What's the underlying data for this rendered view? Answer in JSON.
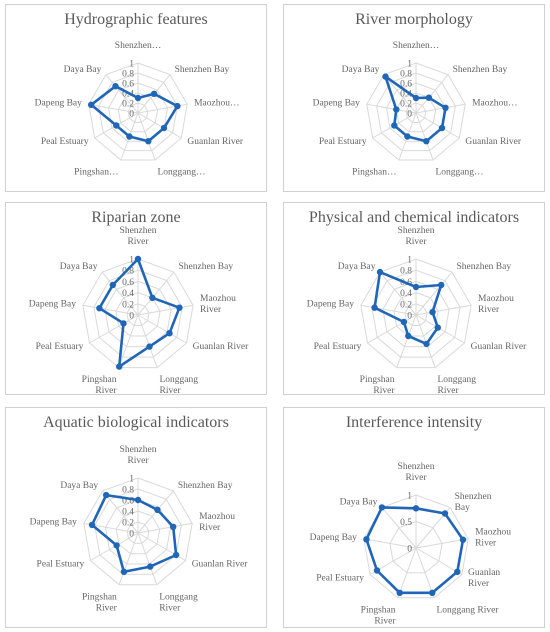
{
  "colors": {
    "series": "#1f66b8",
    "grid": "#d9d9d9",
    "text": "#666666"
  },
  "chart_data": [
    {
      "type": "radar",
      "title": "Hydrographic features",
      "categories": [
        [
          "Shenzhen…"
        ],
        [
          "Shenzhen Bay"
        ],
        [
          "Maozhou…"
        ],
        [
          "Guanlan River"
        ],
        [
          "Longgang…"
        ],
        [
          "Pingshan…"
        ],
        [
          "Peal Estuary"
        ],
        [
          "Dapeng Bay"
        ],
        [
          "Daya Bay"
        ]
      ],
      "ticks": [
        "0",
        "0.2",
        "0.4",
        "0.6",
        "0.8",
        "1"
      ],
      "rmax": 1,
      "values": [
        0.3,
        0.5,
        0.8,
        0.6,
        0.6,
        0.5,
        0.5,
        0.95,
        0.7
      ]
    },
    {
      "type": "radar",
      "title": "River morphology",
      "categories": [
        [
          "Shenzhen…"
        ],
        [
          "Shenzhen Bay"
        ],
        [
          "Maozhou…"
        ],
        [
          "Guanlan River"
        ],
        [
          "Longgang…"
        ],
        [
          "Pingshan…"
        ],
        [
          "Peal Estuary"
        ],
        [
          "Dapeng Bay"
        ],
        [
          "Daya Bay"
        ]
      ],
      "ticks": [
        "0",
        "0.2",
        "0.4",
        "0.6",
        "0.8",
        "1"
      ],
      "rmax": 1,
      "values": [
        0.3,
        0.4,
        0.6,
        0.6,
        0.6,
        0.5,
        0.5,
        0.4,
        0.95
      ]
    },
    {
      "type": "radar",
      "title": "Riparian zone",
      "categories": [
        [
          "Shenzhen",
          "River"
        ],
        [
          "Shenzhen Bay"
        ],
        [
          "Maozhou",
          "River"
        ],
        [
          "Guanlan River"
        ],
        [
          "Longgang",
          "River"
        ],
        [
          "Pingshan",
          "River"
        ],
        [
          "Peal Estuary"
        ],
        [
          "Dapeng Bay"
        ],
        [
          "Daya Bay"
        ]
      ],
      "ticks": [
        "0",
        "0.2",
        "0.4",
        "0.6",
        "0.8",
        "1"
      ],
      "rmax": 1,
      "values": [
        1.0,
        0.4,
        0.75,
        0.65,
        0.6,
        0.98,
        0.3,
        0.7,
        0.7
      ]
    },
    {
      "type": "radar",
      "title": "Physical and chemical indicators",
      "categories": [
        [
          "Shenzhen",
          "River"
        ],
        [
          "Shenzhen Bay"
        ],
        [
          "Maozhou",
          "River"
        ],
        [
          "Guanlan River"
        ],
        [
          "Longgang",
          "River"
        ],
        [
          "Pingshan",
          "River"
        ],
        [
          "Peal Estuary"
        ],
        [
          "Dapeng Bay"
        ],
        [
          "Daya Bay"
        ]
      ],
      "ticks": [
        "0",
        "0.2",
        "0.4",
        "0.6",
        "0.8",
        "1"
      ],
      "rmax": 1,
      "values": [
        0.5,
        0.7,
        0.3,
        0.45,
        0.55,
        0.4,
        0.25,
        0.75,
        1.0
      ]
    },
    {
      "type": "radar",
      "title": "Aquatic biological indicators",
      "categories": [
        [
          "Shenzhen",
          "River"
        ],
        [
          "Shenzhen Bay"
        ],
        [
          "Maozhou",
          "River"
        ],
        [
          "Guanlan River"
        ],
        [
          "Longgang",
          "River"
        ],
        [
          "Pingshan",
          "River"
        ],
        [
          "Peal Estuary"
        ],
        [
          "Dapeng Bay"
        ],
        [
          "Daya Bay"
        ]
      ],
      "ticks": [
        "0",
        "0.2",
        "0.4",
        "0.6",
        "0.8",
        "1"
      ],
      "rmax": 1,
      "values": [
        0.6,
        0.55,
        0.65,
        0.8,
        0.65,
        0.75,
        0.45,
        0.85,
        0.9
      ]
    },
    {
      "type": "radar",
      "title": "Interference intensity",
      "categories": [
        [
          "Shenzhen",
          "River"
        ],
        [
          "Shenzhen",
          "Bay"
        ],
        [
          "Maozhou",
          "River"
        ],
        [
          "Guanlan",
          "River"
        ],
        [
          "Longgang River"
        ],
        [
          "Pingshan",
          "River"
        ],
        [
          "Peal Estuary"
        ],
        [
          "Dapeng Bay"
        ],
        [
          "Daya Bay"
        ]
      ],
      "ticks": [
        "0",
        "0.5",
        "1"
      ],
      "rmax": 1,
      "values": [
        0.75,
        0.85,
        0.9,
        0.9,
        0.9,
        0.9,
        0.85,
        0.95,
        1.0
      ]
    }
  ]
}
